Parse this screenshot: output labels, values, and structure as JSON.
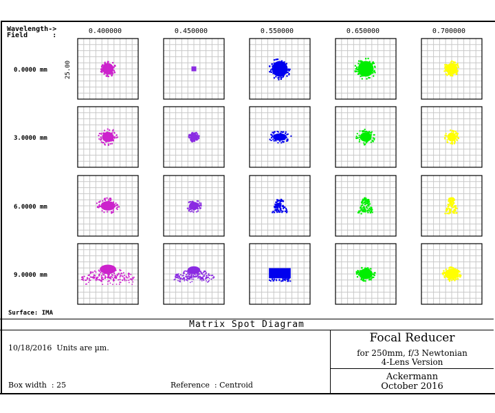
{
  "header": {
    "wavelength_label": "Wavelength->",
    "field_label": "Field      :"
  },
  "surface_label": "Surface: IMA",
  "scale_label": "25.00",
  "footer": {
    "title": "Matrix Spot Diagram",
    "date_units": "10/18/2016  Units are µm.",
    "box_width": "Box width  : 25",
    "reference": "Reference  : Centroid",
    "project_title": "Focal Reducer",
    "project_line2": "for 250mm, f/3 Newtonian",
    "project_line3": "4-Lens Version",
    "author": "Ackermann",
    "date": "October 2016"
  },
  "colors": {
    "0.400000": "#cc22cc",
    "0.450000": "#8a2be2",
    "0.550000": "#0000ee",
    "0.650000": "#00ee00",
    "0.700000": "#ffff00",
    "grid": "#c8c8c8"
  },
  "chart_data": {
    "type": "scatter",
    "title": "Matrix Spot Diagram",
    "units": "µm",
    "box_width": 25,
    "reference": "Centroid",
    "wavelengths": [
      "0.400000",
      "0.450000",
      "0.550000",
      "0.650000",
      "0.700000"
    ],
    "fields": [
      "0.0000 mm",
      "3.0000 mm",
      "6.0000 mm",
      "9.0000 mm"
    ],
    "spots": [
      [
        {
          "shape": "disc",
          "rx": 1.3,
          "ry": 1.3
        },
        {
          "shape": "square",
          "rx": 0.4,
          "ry": 0.4
        },
        {
          "shape": "disc",
          "rx": 1.8,
          "ry": 1.8
        },
        {
          "shape": "disc",
          "rx": 1.8,
          "ry": 1.8
        },
        {
          "shape": "disc",
          "rx": 1.3,
          "ry": 1.3
        }
      ],
      [
        {
          "shape": "cloud",
          "rx": 1.6,
          "ry": 1.4
        },
        {
          "shape": "disc",
          "rx": 0.9,
          "ry": 0.8
        },
        {
          "shape": "cloud",
          "rx": 1.9,
          "ry": 1.0
        },
        {
          "shape": "cloud",
          "rx": 1.6,
          "ry": 1.3
        },
        {
          "shape": "cloud",
          "rx": 1.2,
          "ry": 1.2
        }
      ],
      [
        {
          "shape": "cloud",
          "rx": 2.0,
          "ry": 1.3
        },
        {
          "shape": "cloud",
          "rx": 1.3,
          "ry": 1.1
        },
        {
          "shape": "triangle",
          "rx": 1.3,
          "ry": 1.1
        },
        {
          "shape": "triangle",
          "rx": 1.3,
          "ry": 1.3
        },
        {
          "shape": "triangle",
          "rx": 1.1,
          "ry": 1.3
        }
      ],
      [
        {
          "shape": "arc",
          "rx": 4.5,
          "ry": 2.2
        },
        {
          "shape": "arc",
          "rx": 3.5,
          "ry": 1.8
        },
        {
          "shape": "block",
          "rx": 1.8,
          "ry": 1.2
        },
        {
          "shape": "disc",
          "rx": 1.6,
          "ry": 1.2
        },
        {
          "shape": "disc",
          "rx": 1.6,
          "ry": 1.2
        }
      ]
    ]
  }
}
